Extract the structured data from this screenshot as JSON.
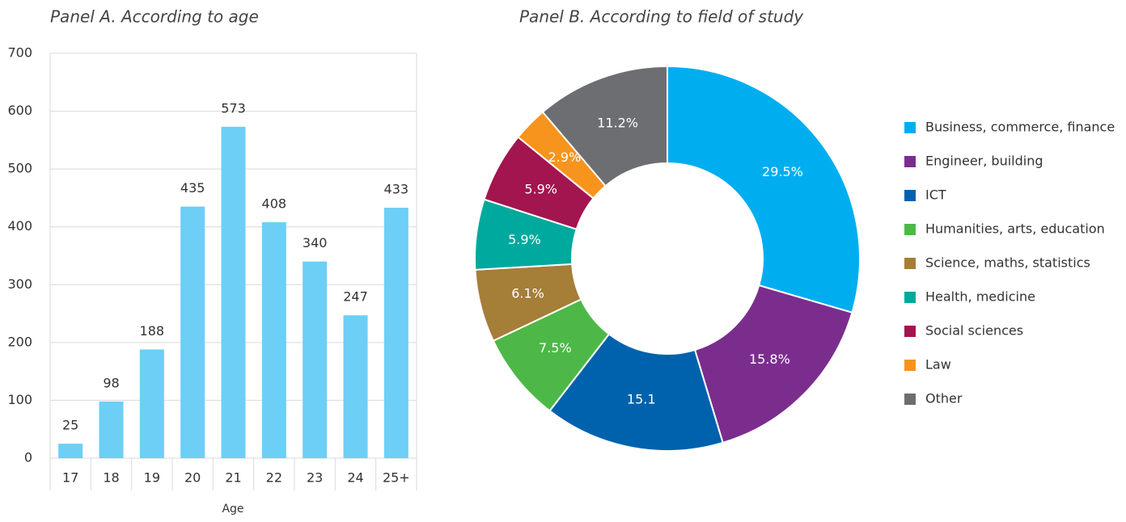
{
  "chart_data": [
    {
      "type": "bar",
      "title": "Panel A. According to age",
      "xlabel": "Age",
      "categories": [
        "17",
        "18",
        "19",
        "20",
        "21",
        "22",
        "23",
        "24",
        "25+"
      ],
      "values": [
        25,
        98,
        188,
        435,
        573,
        408,
        340,
        247,
        433
      ],
      "color": "#6dcff6",
      "ylim": [
        0,
        700
      ],
      "yticks": [
        0,
        100,
        200,
        300,
        400,
        500,
        600,
        700
      ],
      "grid": true
    },
    {
      "type": "pie",
      "title": "Panel B. According to field of study",
      "legend": "right",
      "categories": [
        "Business, commerce, finance",
        "Engineer, building",
        "ICT",
        "Humanities, arts, education",
        "Science, maths, statistics",
        "Health, medicine",
        "Social sciences",
        "Law",
        "Other"
      ],
      "values": [
        29.5,
        15.8,
        15.1,
        7.5,
        6.1,
        5.9,
        5.9,
        2.9,
        11.2
      ],
      "value_labels": [
        "29.5%",
        "15.8%",
        "15.1",
        "7.5%",
        "6.1%",
        "5.9%",
        "5.9%",
        "2.9%",
        "11.2%"
      ],
      "colors": [
        "#00aeef",
        "#7b2d8e",
        "#0062ad",
        "#4db848",
        "#a57e37",
        "#00a99d",
        "#a3154f",
        "#f7941d",
        "#6d6e71"
      ]
    }
  ]
}
